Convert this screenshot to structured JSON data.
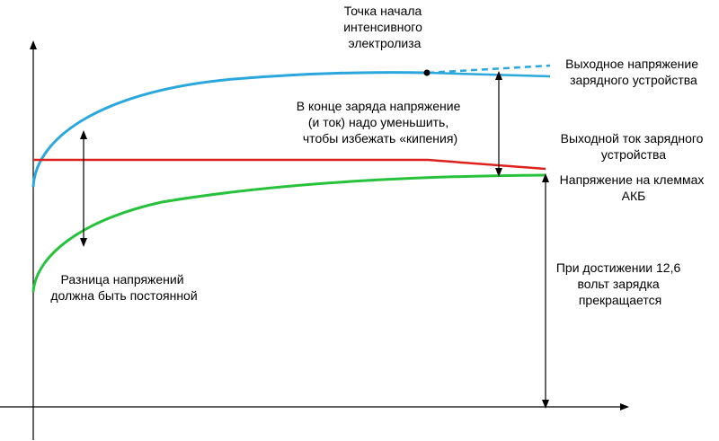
{
  "colors": {
    "voltage_charger": "#2aa7dd",
    "current_charger": "#e0211b",
    "voltage_battery": "#27c23c",
    "axis": "#000000"
  },
  "labels": {
    "electrolysis_point": [
      "Точка начала",
      "интенсивного",
      "электролиза"
    ],
    "charger_voltage": [
      "Выходное напряжение",
      "зарядного устройства"
    ],
    "reduce_note": [
      "В конце заряда напряжение",
      "(и ток) надо уменьшить,",
      "чтобы избежать «кипения)"
    ],
    "charger_current": [
      "Выходной ток зарядного",
      "устройства"
    ],
    "battery_voltage": [
      "Напряжение на клеммах",
      "АКБ"
    ],
    "difference_note": [
      "Разница напряжений",
      "должна быть постоянной"
    ],
    "stop_note": [
      "При достижении 12,6",
      "вольт зарядка",
      "прекращается"
    ]
  },
  "icons": {
    "electrolysis_marker": "dot-icon",
    "axis_arrows": "arrow-icon"
  }
}
